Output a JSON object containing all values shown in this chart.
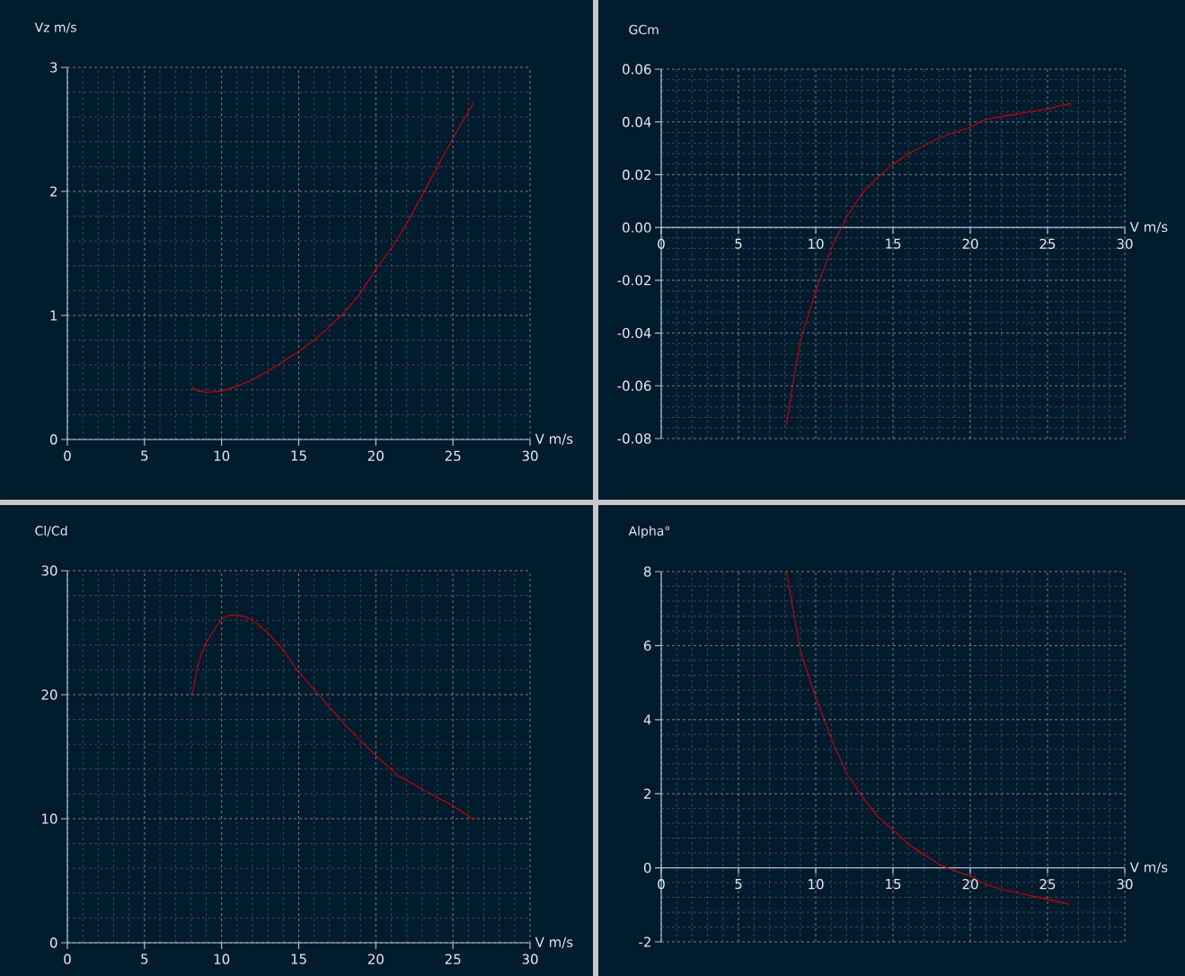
{
  "chart_data": [
    {
      "type": "line",
      "ylabel": "Vz m/s",
      "xlabel": "V m/s",
      "xlim": [
        0,
        30
      ],
      "ylim": [
        0,
        3
      ],
      "xticks": [
        0,
        5,
        10,
        15,
        20,
        25,
        30
      ],
      "yticks": [
        0,
        1,
        2,
        3
      ],
      "grid": true,
      "series": [
        {
          "color": "#d40000",
          "x": [
            8.1,
            8.5,
            9,
            10,
            11,
            12,
            13,
            14,
            15,
            16,
            17,
            18,
            19,
            20,
            21,
            22,
            23,
            24,
            25,
            26.4
          ],
          "values": [
            0.42,
            0.39,
            0.38,
            0.39,
            0.43,
            0.48,
            0.55,
            0.63,
            0.71,
            0.8,
            0.91,
            1.03,
            1.18,
            1.37,
            1.54,
            1.74,
            1.97,
            2.2,
            2.43,
            2.73
          ]
        }
      ]
    },
    {
      "type": "line",
      "ylabel": "GCm",
      "xlabel": "V m/s",
      "xlim": [
        0,
        30
      ],
      "ylim": [
        -0.08,
        0.06
      ],
      "xticks": [
        0,
        5,
        10,
        15,
        20,
        25,
        30
      ],
      "yticks": [
        {
          "value": -0.08,
          "label": "-0.08"
        },
        {
          "value": -0.06,
          "label": "-0.06"
        },
        {
          "value": -0.04,
          "label": "-0.04"
        },
        {
          "value": -0.02,
          "label": "-0.02"
        },
        {
          "value": 0,
          "label": "0.00"
        },
        {
          "value": 0.02,
          "label": "0.02"
        },
        {
          "value": 0.04,
          "label": "0.04"
        },
        {
          "value": 0.06,
          "label": "0.06"
        }
      ],
      "grid": true,
      "series": [
        {
          "color": "#d40000",
          "x": [
            8.1,
            8.5,
            9,
            10,
            11,
            12,
            13,
            14,
            15,
            16,
            17,
            18,
            19,
            20,
            21,
            22,
            23,
            24,
            25,
            26.5
          ],
          "values": [
            -0.075,
            -0.06,
            -0.043,
            -0.024,
            -0.008,
            0.004,
            0.013,
            0.019,
            0.024,
            0.028,
            0.031,
            0.034,
            0.036,
            0.038,
            0.041,
            0.042,
            0.043,
            0.044,
            0.045,
            0.047
          ]
        }
      ]
    },
    {
      "type": "line",
      "ylabel": "Cl/Cd",
      "xlabel": "V m/s",
      "xlim": [
        0,
        30
      ],
      "ylim": [
        0,
        30
      ],
      "xticks": [
        0,
        5,
        10,
        15,
        20,
        25,
        30
      ],
      "yticks": [
        0,
        10,
        20,
        30
      ],
      "grid": true,
      "series": [
        {
          "color": "#d40000",
          "x": [
            8.1,
            8.4,
            8.7,
            9,
            9.5,
            10,
            10.5,
            11,
            11.5,
            12,
            13,
            14,
            15,
            16,
            17,
            18,
            19,
            20,
            21.4,
            22,
            23,
            24,
            25,
            26.4
          ],
          "values": [
            20,
            22.1,
            23.3,
            24.2,
            25.2,
            26.1,
            26.4,
            26.4,
            26.3,
            26,
            25,
            23.6,
            21.8,
            20.4,
            19,
            17.6,
            16.3,
            15.1,
            13.5,
            13.1,
            12.4,
            11.7,
            11.05,
            9.9
          ]
        }
      ]
    },
    {
      "type": "line",
      "ylabel": "Alpha°",
      "xlabel": "V m/s",
      "xlim": [
        0,
        30
      ],
      "ylim": [
        -2,
        8
      ],
      "xticks": [
        0,
        5,
        10,
        15,
        20,
        25,
        30
      ],
      "yticks": [
        -2,
        0,
        2,
        4,
        6,
        8
      ],
      "grid": true,
      "series": [
        {
          "color": "#d40000",
          "x": [
            8.1,
            9,
            10,
            11,
            12,
            13,
            14,
            15,
            16,
            17,
            18,
            19,
            20,
            21,
            22,
            23,
            24,
            25,
            26.4
          ],
          "values": [
            8,
            5.87,
            4.6,
            3.5,
            2.55,
            1.93,
            1.39,
            1.03,
            0.63,
            0.36,
            0.09,
            -0.09,
            -0.22,
            -0.45,
            -0.58,
            -0.67,
            -0.76,
            -0.85,
            -0.99
          ]
        }
      ]
    }
  ]
}
